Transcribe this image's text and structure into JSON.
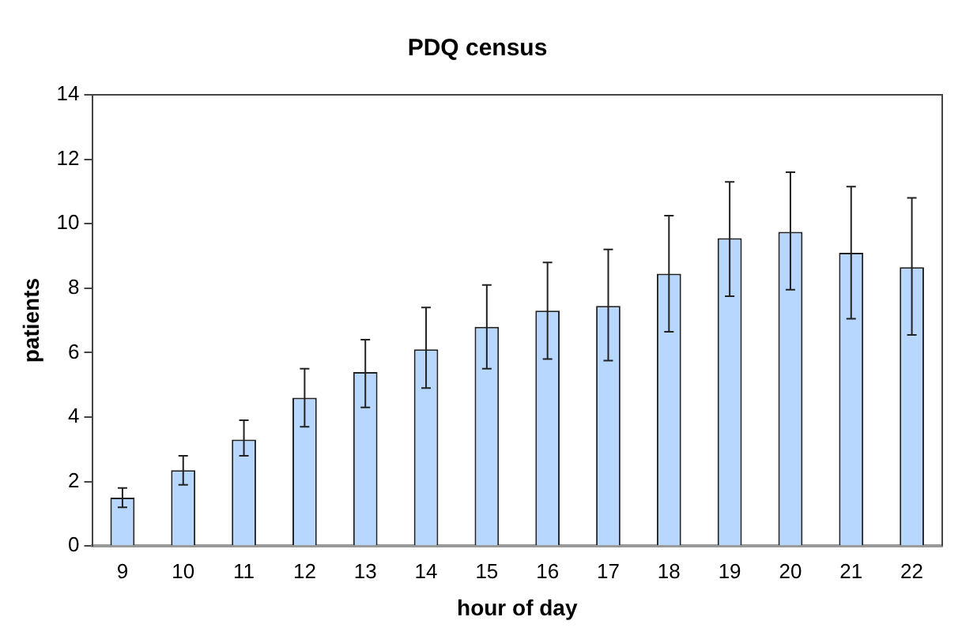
{
  "chart_data": {
    "type": "bar",
    "title": "PDQ census",
    "xlabel": "hour of day",
    "ylabel": "patients",
    "categories": [
      "9",
      "10",
      "11",
      "12",
      "13",
      "14",
      "15",
      "16",
      "17",
      "18",
      "19",
      "20",
      "21",
      "22"
    ],
    "values": [
      1.5,
      2.35,
      3.3,
      4.6,
      5.4,
      6.1,
      6.8,
      7.3,
      7.45,
      8.45,
      9.55,
      9.75,
      9.1,
      8.65
    ],
    "errors": [
      [
        1.2,
        1.8
      ],
      [
        1.9,
        2.8
      ],
      [
        2.8,
        3.9
      ],
      [
        3.7,
        5.5
      ],
      [
        4.3,
        6.4
      ],
      [
        4.9,
        7.4
      ],
      [
        5.5,
        8.1
      ],
      [
        5.8,
        8.8
      ],
      [
        5.75,
        9.2
      ],
      [
        6.65,
        10.25
      ],
      [
        7.75,
        11.3
      ],
      [
        7.95,
        11.6
      ],
      [
        7.05,
        11.15
      ],
      [
        6.55,
        10.8
      ]
    ],
    "color": "#b7d7ff",
    "ylim": [
      0,
      14
    ],
    "yticks": [
      0,
      2,
      4,
      6,
      8,
      10,
      12,
      14
    ],
    "grid": false,
    "legend": false
  }
}
